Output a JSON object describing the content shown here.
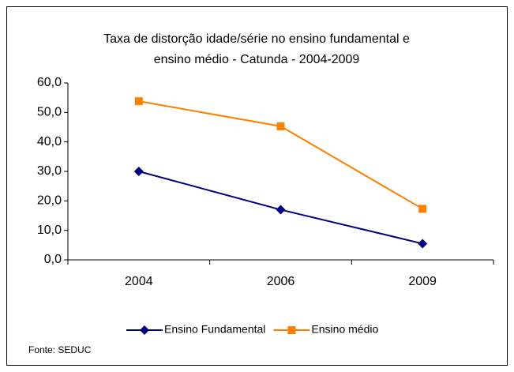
{
  "chart_data": {
    "type": "line",
    "title": [
      "Taxa de distorção idade/série no ensino fundamental e",
      "ensino médio - Catunda -  2004-2009"
    ],
    "categories": [
      "2004",
      "2006",
      "2009"
    ],
    "series": [
      {
        "name": "Ensino Fundamental",
        "color": "#000080",
        "marker": "diamond",
        "values": [
          30.0,
          17.0,
          5.5
        ]
      },
      {
        "name": "Ensino médio",
        "color": "#FF8000",
        "marker": "square",
        "values": [
          53.8,
          45.3,
          17.3
        ]
      }
    ],
    "ylim": [
      0,
      60
    ],
    "yticks": [
      {
        "value": 0,
        "label": "0,0"
      },
      {
        "value": 10,
        "label": "10,0"
      },
      {
        "value": 20,
        "label": "20,0"
      },
      {
        "value": 30,
        "label": "30,0"
      },
      {
        "value": 40,
        "label": "40,0"
      },
      {
        "value": 50,
        "label": "50,0"
      },
      {
        "value": 60,
        "label": "60,0"
      }
    ],
    "grid": false,
    "legend": "bottom",
    "source": "Fonte: SEDUC"
  }
}
